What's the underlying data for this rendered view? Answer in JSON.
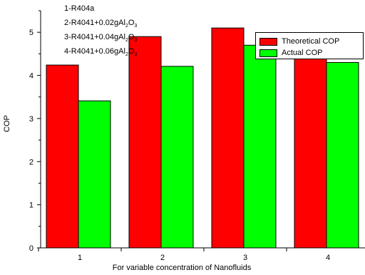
{
  "chart_data": {
    "type": "bar",
    "categories": [
      "1",
      "2",
      "3",
      "4"
    ],
    "series": [
      {
        "name": "Theoretical COP",
        "color": "#ff0000",
        "values": [
          4.24,
          4.9,
          5.1,
          4.74
        ]
      },
      {
        "name": "Actual COP",
        "color": "#00ff00",
        "values": [
          3.41,
          4.21,
          4.7,
          4.3
        ]
      }
    ],
    "title": "",
    "xlabel": "For variable concentration of Nanofluids",
    "ylabel": "COP",
    "ylim": [
      0,
      5.5
    ],
    "yticks": [
      0,
      1,
      2,
      3,
      4,
      5
    ],
    "grid": false,
    "legend_position": "top-right",
    "annotations": [
      {
        "prefix": "1-R404a",
        "sub": "",
        "suffix": ""
      },
      {
        "prefix": "2-R4041+0.02gAl",
        "sub": "2",
        "mid": "O",
        "sub2": "3"
      },
      {
        "prefix": "3-R4041+0.04gAl",
        "sub": "2",
        "mid": "O",
        "sub2": "3"
      },
      {
        "prefix": "4-R4041+0.06gAl",
        "sub": "2",
        "mid": "O",
        "sub2": "3"
      }
    ]
  }
}
